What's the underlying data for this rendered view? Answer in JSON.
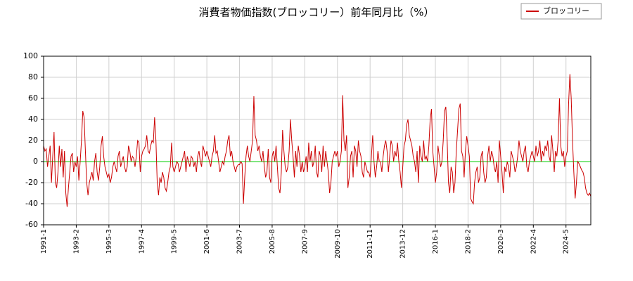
{
  "chart_data": {
    "type": "line",
    "title": "消費者物価指数(ブロッコリー）前年同月比（%）",
    "categories": [
      "1991-1",
      null,
      null,
      null,
      null,
      null,
      null,
      null,
      null,
      null,
      null,
      null,
      null,
      null,
      null,
      null,
      null,
      null,
      null,
      null,
      null,
      null,
      null,
      null,
      null,
      "1993-2",
      null,
      null,
      null,
      null,
      null,
      null,
      null,
      null,
      null,
      null,
      null,
      null,
      null,
      null,
      null,
      null,
      null,
      null,
      null,
      null,
      null,
      null,
      null,
      null,
      "1995-3",
      null,
      null,
      null,
      null,
      null,
      null,
      null,
      null,
      null,
      null,
      null,
      null,
      null,
      null,
      null,
      null,
      null,
      null,
      null,
      null,
      null,
      null,
      null,
      null,
      "1997-4",
      null,
      null,
      null,
      null,
      null,
      null,
      null,
      null,
      null,
      null,
      null,
      null,
      null,
      null,
      null,
      null,
      null,
      null,
      null,
      null,
      null,
      null,
      null,
      null,
      "1999-5",
      null,
      null,
      null,
      null,
      null,
      null,
      null,
      null,
      null,
      null,
      null,
      null,
      null,
      null,
      null,
      null,
      null,
      null,
      null,
      null,
      null,
      null,
      null,
      null,
      "2001-6",
      null,
      null,
      null,
      null,
      null,
      null,
      null,
      null,
      null,
      null,
      null,
      null,
      null,
      null,
      null,
      null,
      null,
      null,
      null,
      null,
      null,
      null,
      null,
      null,
      "2003-7",
      null,
      null,
      null,
      null,
      null,
      null,
      null,
      null,
      null,
      null,
      null,
      null,
      null,
      null,
      null,
      null,
      null,
      null,
      null,
      null,
      null,
      null,
      null,
      null,
      "2005-8",
      null,
      null,
      null,
      null,
      null,
      null,
      null,
      null,
      null,
      null,
      null,
      null,
      null,
      null,
      null,
      null,
      null,
      null,
      null,
      null,
      null,
      null,
      null,
      null,
      "2007-9",
      null,
      null,
      null,
      null,
      null,
      null,
      null,
      null,
      null,
      null,
      null,
      null,
      null,
      null,
      null,
      null,
      null,
      null,
      null,
      null,
      null,
      null,
      null,
      null,
      "2009-10",
      null,
      null,
      null,
      null,
      null,
      null,
      null,
      null,
      null,
      null,
      null,
      null,
      null,
      null,
      null,
      null,
      null,
      null,
      null,
      null,
      null,
      null,
      null,
      null,
      "2011-11",
      null,
      null,
      null,
      null,
      null,
      null,
      null,
      null,
      null,
      null,
      null,
      null,
      null,
      null,
      null,
      null,
      null,
      null,
      null,
      null,
      null,
      null,
      null,
      null,
      "2013-12",
      null,
      null,
      null,
      null,
      null,
      null,
      null,
      null,
      null,
      null,
      null,
      null,
      null,
      null,
      null,
      null,
      null,
      null,
      null,
      null,
      null,
      null,
      null,
      null,
      "2016-1",
      null,
      null,
      null,
      null,
      null,
      null,
      null,
      null,
      null,
      null,
      null,
      null,
      null,
      null,
      null,
      null,
      null,
      null,
      null,
      null,
      null,
      null,
      null,
      null,
      "2018-2",
      null,
      null,
      null,
      null,
      null,
      null,
      null,
      null,
      null,
      null,
      null,
      null,
      null,
      null,
      null,
      null,
      null,
      null,
      null,
      null,
      null,
      null,
      null,
      null,
      "2020-3",
      null,
      null,
      null,
      null,
      null,
      null,
      null,
      null,
      null,
      null,
      null,
      null,
      null,
      null,
      null,
      null,
      null,
      null,
      null,
      null,
      null,
      null,
      null,
      null,
      "2022-4",
      null,
      null,
      null,
      null,
      null,
      null,
      null,
      null,
      null,
      null,
      null,
      null,
      null,
      null,
      null,
      null,
      null,
      null,
      null,
      null,
      null,
      null,
      null,
      null,
      "2024-5",
      null,
      null,
      null,
      null,
      null,
      null,
      null,
      null,
      null,
      null,
      null,
      null,
      null,
      null,
      null,
      null,
      null,
      null,
      null
    ],
    "series": [
      {
        "name": "ブロッコリー",
        "color": "#cc0000",
        "values": [
          15,
          10,
          12,
          -5,
          5,
          15,
          -20,
          5,
          28,
          -20,
          -25,
          -10,
          15,
          -5,
          12,
          -15,
          10,
          -30,
          -43,
          -25,
          -10,
          5,
          8,
          -10,
          0,
          -5,
          5,
          -18,
          0,
          20,
          48,
          42,
          10,
          -20,
          -32,
          -20,
          -15,
          -10,
          -18,
          0,
          8,
          -10,
          -18,
          -5,
          15,
          24,
          5,
          -5,
          -10,
          -15,
          -12,
          -20,
          -15,
          -5,
          0,
          -5,
          -10,
          5,
          10,
          -5,
          0,
          5,
          -5,
          -10,
          -5,
          15,
          10,
          0,
          5,
          3,
          -5,
          5,
          20,
          18,
          -10,
          5,
          10,
          12,
          15,
          25,
          10,
          8,
          15,
          20,
          18,
          42,
          20,
          -20,
          -32,
          -15,
          -20,
          -10,
          -15,
          -25,
          -28,
          -20,
          -10,
          -5,
          18,
          -5,
          -10,
          -5,
          0,
          -2,
          -10,
          -5,
          0,
          5,
          10,
          -10,
          5,
          0,
          -5,
          5,
          3,
          -5,
          0,
          -10,
          5,
          10,
          0,
          -5,
          15,
          10,
          5,
          10,
          5,
          0,
          -5,
          5,
          10,
          25,
          8,
          10,
          0,
          -10,
          -5,
          0,
          -3,
          5,
          10,
          20,
          25,
          5,
          10,
          0,
          -5,
          -10,
          -5,
          -3,
          -3,
          0,
          -2,
          -40,
          -15,
          5,
          15,
          5,
          0,
          10,
          20,
          62,
          25,
          20,
          10,
          15,
          5,
          0,
          10,
          -5,
          -15,
          -10,
          12,
          -15,
          -20,
          5,
          10,
          0,
          15,
          -5,
          -25,
          -30,
          -10,
          30,
          10,
          -5,
          -10,
          -5,
          10,
          40,
          20,
          5,
          -15,
          10,
          -5,
          15,
          5,
          -10,
          0,
          -10,
          -5,
          5,
          -10,
          18,
          0,
          10,
          -5,
          0,
          15,
          -10,
          -15,
          10,
          5,
          -10,
          15,
          -5,
          10,
          0,
          -10,
          -30,
          -20,
          0,
          5,
          10,
          5,
          10,
          -5,
          0,
          10,
          63,
          20,
          10,
          25,
          -25,
          -15,
          5,
          10,
          -15,
          15,
          10,
          -5,
          20,
          10,
          5,
          -10,
          -15,
          0,
          -5,
          -10,
          -10,
          -15,
          5,
          25,
          0,
          -15,
          -5,
          10,
          0,
          0,
          -10,
          5,
          15,
          20,
          10,
          -10,
          5,
          20,
          15,
          0,
          10,
          5,
          18,
          0,
          -10,
          -25,
          -5,
          15,
          20,
          35,
          40,
          25,
          20,
          15,
          5,
          0,
          -10,
          10,
          -20,
          15,
          5,
          0,
          20,
          2,
          5,
          0,
          15,
          40,
          50,
          10,
          -5,
          -20,
          -10,
          15,
          5,
          -5,
          0,
          20,
          48,
          52,
          20,
          -20,
          -30,
          -5,
          -10,
          -30,
          -20,
          10,
          30,
          50,
          55,
          10,
          5,
          -15,
          10,
          24,
          15,
          5,
          -35,
          -38,
          -40,
          -20,
          -10,
          -5,
          -20,
          -15,
          5,
          10,
          -10,
          -20,
          -15,
          5,
          15,
          0,
          10,
          5,
          -5,
          -10,
          0,
          -20,
          20,
          5,
          -10,
          -30,
          -5,
          -10,
          0,
          -5,
          -15,
          10,
          5,
          0,
          -10,
          -5,
          5,
          20,
          10,
          5,
          0,
          10,
          15,
          -5,
          -10,
          0,
          5,
          10,
          5,
          0,
          15,
          5,
          10,
          20,
          0,
          10,
          5,
          15,
          10,
          20,
          5,
          0,
          25,
          10,
          -10,
          10,
          5,
          20,
          60,
          15,
          5,
          10,
          -5,
          5,
          10,
          55,
          83,
          60,
          20,
          -10,
          -35,
          -20,
          0,
          -2,
          -5,
          -8,
          -10,
          -15,
          -25,
          -30,
          -32,
          -30,
          -33
        ]
      }
    ],
    "ylim": [
      -60,
      100
    ],
    "yticks": [
      -60,
      -40,
      -20,
      0,
      20,
      40,
      60,
      80,
      100
    ],
    "grid": true,
    "zero_line_color": "#00cc00",
    "legend": "upper right"
  }
}
